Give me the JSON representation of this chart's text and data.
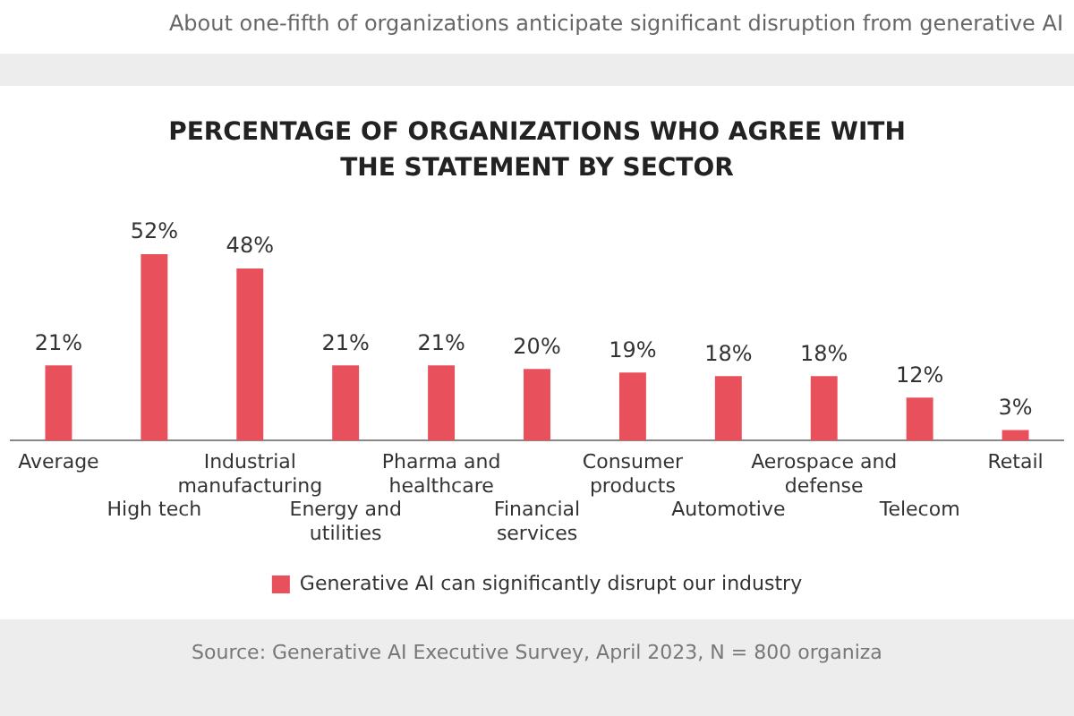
{
  "chart_data": {
    "type": "bar",
    "title": "PERCENTAGE OF ORGANIZATIONS WHO AGREE WITH THE STATEMENT BY SECTOR",
    "categories": [
      "Average",
      "High tech",
      "Industrial manufacturing",
      "Energy and utilities",
      "Pharma and healthcare",
      "Financial services",
      "Consumer products",
      "Automotive",
      "Aerospace and defense",
      "Telecom",
      "Retail"
    ],
    "series": [
      {
        "name": "Generative AI can significantly disrupt our industry",
        "color": "#e8505b",
        "values": [
          21,
          52,
          48,
          21,
          21,
          20,
          19,
          18,
          18,
          12,
          3
        ],
        "value_labels": [
          "21%",
          "52%",
          "48%",
          "21%",
          "21%",
          "20%",
          "19%",
          "18%",
          "18%",
          "12%",
          "3%"
        ]
      }
    ],
    "legend": "bottom",
    "tick_labels": "x",
    "annotations": [
      "About one-fifth of organizations anticipate significant disruption from generative AI",
      "Source: Generative AI Executive Survey, April 2023, N = 800 organiza"
    ]
  }
}
